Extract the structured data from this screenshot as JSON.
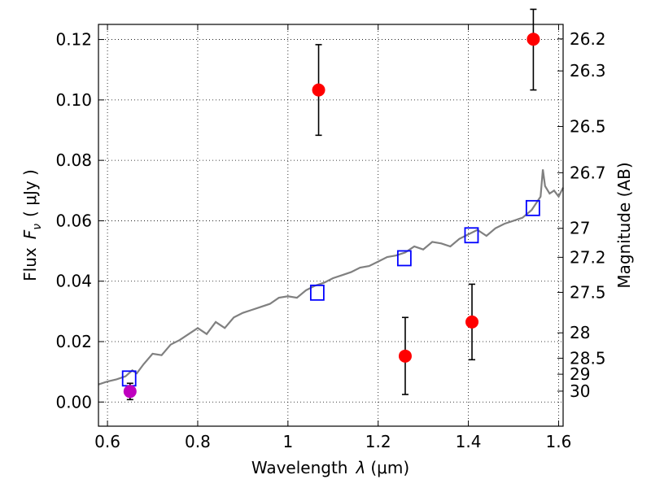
{
  "chart_data": {
    "type": "scatter",
    "xlabel": "Wavelength",
    "xlabel_symbol": "λ",
    "xlabel_unit": "(μm)",
    "ylabel": "Flux",
    "ylabel_symbol": "F",
    "ylabel_subscript": "ν",
    "ylabel_unit": "( μJy )",
    "y2label": "Magnitude (AB)",
    "xlim": [
      0.58,
      1.61
    ],
    "ylim": [
      -0.008,
      0.125
    ],
    "grid": true,
    "x_ticks": [
      0.6,
      0.8,
      1.0,
      1.2,
      1.4,
      1.6
    ],
    "x_tick_labels": [
      "0.6",
      "0.8",
      "1",
      "1.2",
      "1.4",
      "1.6"
    ],
    "y_ticks": [
      0.0,
      0.02,
      0.04,
      0.06,
      0.08,
      0.1,
      0.12
    ],
    "y_tick_labels": [
      "0.00",
      "0.02",
      "0.04",
      "0.06",
      "0.08",
      "0.10",
      "0.12"
    ],
    "y2_tick_labels": [
      "26.2",
      "26.3",
      "26.5",
      "26.7",
      "27",
      "27.2",
      "27.5",
      "28",
      "28.5",
      "29",
      "30"
    ],
    "y2_tick_fluxes": [
      0.1202,
      0.1096,
      0.0912,
      0.0759,
      0.0575,
      0.0479,
      0.0363,
      0.0229,
      0.0145,
      0.0092,
      0.0036
    ],
    "series": [
      {
        "kind": "line",
        "color": "#808080",
        "x": [
          0.58,
          0.6,
          0.62,
          0.64,
          0.655,
          0.665,
          0.68,
          0.7,
          0.72,
          0.74,
          0.76,
          0.78,
          0.8,
          0.82,
          0.84,
          0.86,
          0.88,
          0.9,
          0.92,
          0.94,
          0.96,
          0.98,
          1.0,
          1.02,
          1.04,
          1.06,
          1.08,
          1.1,
          1.12,
          1.14,
          1.16,
          1.18,
          1.2,
          1.22,
          1.24,
          1.26,
          1.28,
          1.3,
          1.32,
          1.34,
          1.36,
          1.38,
          1.4,
          1.42,
          1.44,
          1.46,
          1.48,
          1.5,
          1.52,
          1.54,
          1.56,
          1.565,
          1.57,
          1.58,
          1.59,
          1.6,
          1.61
        ],
        "y": [
          0.0058,
          0.0068,
          0.0075,
          0.0085,
          0.0105,
          0.0095,
          0.0125,
          0.016,
          0.0155,
          0.019,
          0.0205,
          0.0225,
          0.0245,
          0.0225,
          0.0265,
          0.0245,
          0.028,
          0.0295,
          0.0305,
          0.0315,
          0.0325,
          0.0345,
          0.035,
          0.0345,
          0.037,
          0.0385,
          0.0395,
          0.041,
          0.042,
          0.043,
          0.0445,
          0.045,
          0.0465,
          0.048,
          0.0485,
          0.0495,
          0.0515,
          0.0505,
          0.053,
          0.0525,
          0.0515,
          0.054,
          0.0555,
          0.057,
          0.055,
          0.0575,
          0.059,
          0.06,
          0.061,
          0.0635,
          0.068,
          0.077,
          0.0715,
          0.069,
          0.07,
          0.068,
          0.071
        ]
      },
      {
        "kind": "open-square",
        "color": "#0000ff",
        "x": [
          0.648,
          1.065,
          1.258,
          1.407,
          1.543
        ],
        "y": [
          0.0078,
          0.0362,
          0.0476,
          0.0552,
          0.0642
        ]
      },
      {
        "kind": "filled-circle",
        "color": "#ff0000",
        "x": [
          1.068,
          1.26,
          1.408,
          1.544
        ],
        "y": [
          0.1033,
          0.0152,
          0.0265,
          0.1201
        ],
        "err_low": [
          0.0883,
          0.0025,
          0.014,
          0.1033
        ],
        "err_high": [
          0.1183,
          0.028,
          0.039,
          0.13
        ]
      },
      {
        "kind": "filled-circle",
        "color": "#bf00bf",
        "x": [
          0.65
        ],
        "y": [
          0.0035
        ],
        "err_low": [
          0.0008
        ],
        "err_high": [
          0.0062
        ]
      }
    ]
  }
}
